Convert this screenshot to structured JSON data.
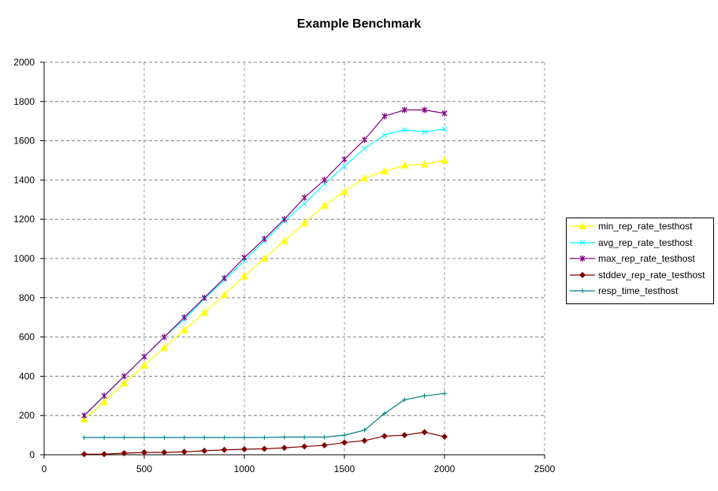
{
  "chart_data": {
    "type": "line",
    "title": "Example Benchmark",
    "xlabel": "",
    "ylabel": "",
    "xlim": [
      0,
      2500
    ],
    "ylim": [
      0,
      2000
    ],
    "xticks": [
      0,
      500,
      1000,
      1500,
      2000,
      2500
    ],
    "yticks": [
      0,
      200,
      400,
      600,
      800,
      1000,
      1200,
      1400,
      1600,
      1800,
      2000
    ],
    "grid": true,
    "legend_position": "right",
    "x": [
      200,
      300,
      400,
      500,
      600,
      700,
      800,
      900,
      1000,
      1100,
      1200,
      1300,
      1400,
      1500,
      1600,
      1700,
      1800,
      1900,
      2000
    ],
    "series": [
      {
        "name": "min_rep_rate_testhost",
        "color": "#ffff00",
        "marker": "triangle",
        "values": [
          180,
          270,
          365,
          455,
          545,
          635,
          725,
          815,
          910,
          1000,
          1090,
          1180,
          1270,
          1340,
          1410,
          1445,
          1475,
          1480,
          1500
        ]
      },
      {
        "name": "avg_rep_rate_testhost",
        "color": "#00ffff",
        "marker": "x",
        "values": [
          200,
          300,
          400,
          500,
          600,
          690,
          795,
          890,
          990,
          1090,
          1190,
          1280,
          1380,
          1470,
          1560,
          1630,
          1655,
          1645,
          1660
        ]
      },
      {
        "name": "max_rep_rate_testhost",
        "color": "#800080",
        "marker": "star",
        "values": [
          200,
          300,
          400,
          500,
          600,
          700,
          800,
          900,
          1005,
          1100,
          1200,
          1310,
          1400,
          1505,
          1605,
          1725,
          1757,
          1757,
          1740
        ]
      },
      {
        "name": "stddev_rep_rate_testhost",
        "color": "#800000",
        "marker": "diamond",
        "values": [
          3,
          3,
          8,
          12,
          12,
          15,
          20,
          25,
          28,
          30,
          35,
          42,
          48,
          62,
          72,
          95,
          100,
          115,
          92
        ]
      },
      {
        "name": "resp_time_testhost",
        "color": "#008080",
        "marker": "plus",
        "values": [
          88,
          88,
          88,
          88,
          88,
          88,
          88,
          88,
          88,
          88,
          90,
          90,
          90,
          100,
          125,
          210,
          280,
          300,
          312
        ]
      }
    ]
  }
}
